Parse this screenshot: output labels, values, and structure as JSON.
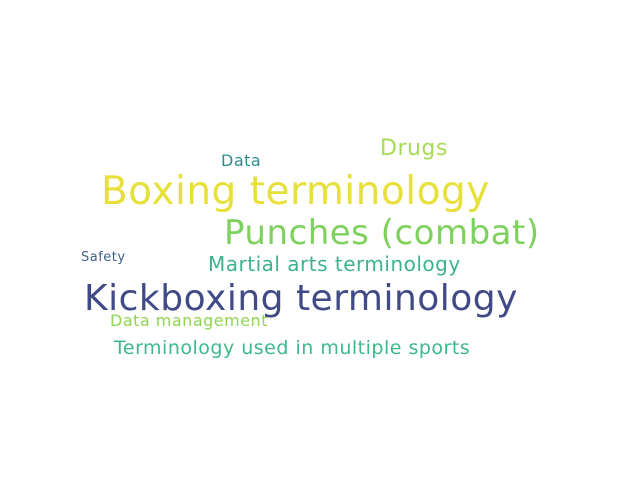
{
  "wordcloud": {
    "words": [
      {
        "id": "boxing-terminology",
        "text": "Boxing terminology",
        "color": "#e8e03a"
      },
      {
        "id": "kickboxing-terminology",
        "text": "Kickboxing terminology",
        "color": "#3f4a86"
      },
      {
        "id": "punches-combat",
        "text": "Punches (combat)",
        "color": "#7fd15e"
      },
      {
        "id": "martial-arts-terminology",
        "text": "Martial arts terminology",
        "color": "#3db389"
      },
      {
        "id": "terminology-multiple-sports",
        "text": "Terminology used in multiple sports",
        "color": "#3cb98a"
      },
      {
        "id": "drugs",
        "text": "Drugs",
        "color": "#a7db52"
      },
      {
        "id": "data",
        "text": "Data",
        "color": "#2a8d8c"
      },
      {
        "id": "data-management",
        "text": "Data management",
        "color": "#8fd54f"
      },
      {
        "id": "safety",
        "text": "Safety",
        "color": "#3d5f8c"
      }
    ]
  }
}
